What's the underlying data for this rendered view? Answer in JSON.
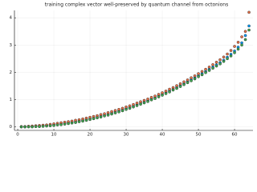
{
  "chart_data": {
    "type": "scatter",
    "title": "training complex vector well-preserved by quantum channel from octonions",
    "x": [
      1,
      2,
      3,
      4,
      5,
      6,
      7,
      8,
      9,
      10,
      11,
      12,
      13,
      14,
      15,
      16,
      17,
      18,
      19,
      20,
      21,
      22,
      23,
      24,
      25,
      26,
      27,
      28,
      29,
      30,
      31,
      32,
      33,
      34,
      35,
      36,
      37,
      38,
      39,
      40,
      41,
      42,
      43,
      44,
      45,
      46,
      47,
      48,
      49,
      50,
      51,
      52,
      53,
      54,
      55,
      56,
      57,
      58,
      59,
      60,
      61,
      62,
      63,
      64
    ],
    "series": [
      {
        "color": "#009afa",
        "values": [
          0.0,
          0.0,
          0.01,
          0.01,
          0.02,
          0.03,
          0.04,
          0.05,
          0.06,
          0.08,
          0.09,
          0.11,
          0.13,
          0.15,
          0.17,
          0.19,
          0.22,
          0.24,
          0.27,
          0.3,
          0.33,
          0.36,
          0.4,
          0.43,
          0.47,
          0.51,
          0.55,
          0.59,
          0.63,
          0.68,
          0.72,
          0.77,
          0.82,
          0.87,
          0.92,
          0.97,
          1.03,
          1.08,
          1.14,
          1.2,
          1.26,
          1.32,
          1.39,
          1.45,
          1.52,
          1.59,
          1.66,
          1.73,
          1.8,
          1.88,
          1.95,
          2.03,
          2.11,
          2.19,
          2.27,
          2.35,
          2.44,
          2.55,
          2.66,
          2.78,
          2.92,
          3.08,
          3.35,
          3.7
        ]
      },
      {
        "color": "#e36f47",
        "values": [
          0.01,
          0.01,
          0.02,
          0.03,
          0.04,
          0.05,
          0.06,
          0.07,
          0.09,
          0.11,
          0.13,
          0.15,
          0.17,
          0.19,
          0.21,
          0.24,
          0.26,
          0.29,
          0.32,
          0.35,
          0.38,
          0.41,
          0.45,
          0.48,
          0.52,
          0.56,
          0.6,
          0.64,
          0.68,
          0.73,
          0.77,
          0.82,
          0.87,
          0.92,
          0.97,
          1.02,
          1.08,
          1.13,
          1.19,
          1.25,
          1.31,
          1.38,
          1.44,
          1.51,
          1.58,
          1.65,
          1.72,
          1.8,
          1.87,
          1.95,
          2.03,
          2.11,
          2.19,
          2.28,
          2.37,
          2.46,
          2.56,
          2.67,
          2.8,
          2.95,
          3.1,
          3.3,
          3.5,
          4.2
        ]
      },
      {
        "color": "#3ea44e",
        "values": [
          0.0,
          0.0,
          0.0,
          0.0,
          0.01,
          0.01,
          0.02,
          0.03,
          0.04,
          0.05,
          0.07,
          0.08,
          0.1,
          0.12,
          0.14,
          0.16,
          0.19,
          0.21,
          0.24,
          0.27,
          0.3,
          0.33,
          0.36,
          0.4,
          0.43,
          0.47,
          0.51,
          0.55,
          0.59,
          0.64,
          0.68,
          0.73,
          0.78,
          0.83,
          0.88,
          0.93,
          0.99,
          1.04,
          1.1,
          1.16,
          1.22,
          1.28,
          1.35,
          1.41,
          1.48,
          1.55,
          1.62,
          1.69,
          1.76,
          1.84,
          1.91,
          1.99,
          2.07,
          2.15,
          2.23,
          2.31,
          2.4,
          2.5,
          2.6,
          2.72,
          2.85,
          3.0,
          3.2,
          3.55
        ]
      }
    ],
    "xlim": [
      -0.9,
      65.1
    ],
    "ylim": [
      -0.13,
      4.27
    ],
    "xticks": [
      0,
      10,
      20,
      30,
      40,
      50,
      60
    ],
    "yticks": [
      0,
      1,
      2,
      3,
      4
    ],
    "grid": true
  }
}
